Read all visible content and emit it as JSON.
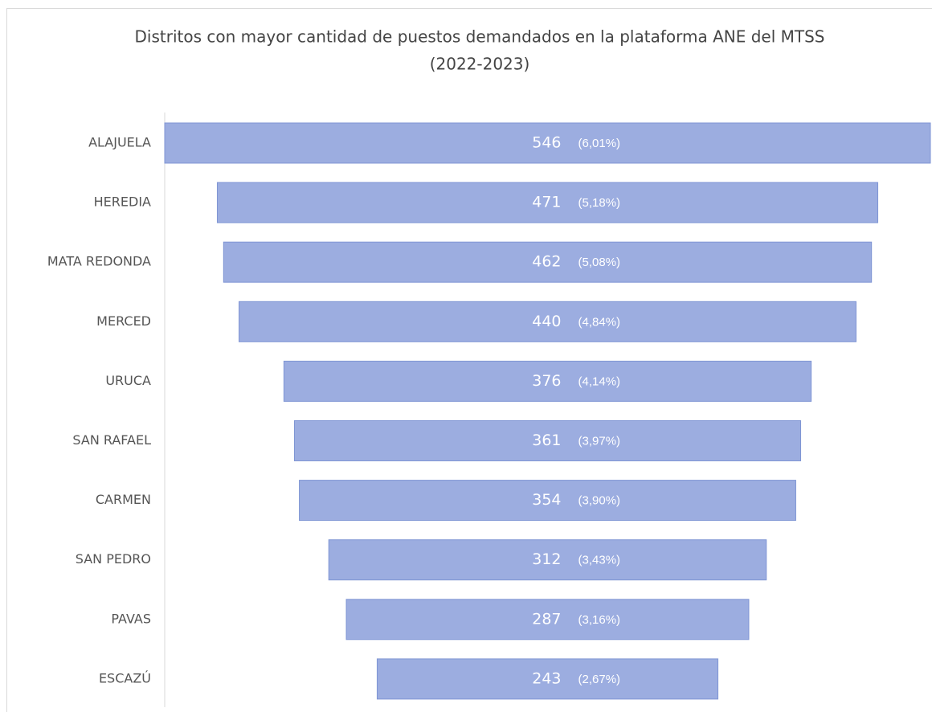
{
  "chart_data": {
    "type": "funnel",
    "title": "Distritos con mayor cantidad de puestos demandados en la plataforma ANE del MTSS",
    "subtitle": "(2022-2023)",
    "categories": [
      "ALAJUELA",
      "HEREDIA",
      "MATA REDONDA",
      "MERCED",
      "URUCA",
      "SAN RAFAEL",
      "CARMEN",
      "SAN PEDRO",
      "PAVAS",
      "ESCAZÚ"
    ],
    "values": [
      546,
      471,
      462,
      440,
      376,
      361,
      354,
      312,
      287,
      243
    ],
    "percent_labels": [
      "(6,01%)",
      "(5,18%)",
      "(5,08%)",
      "(4,84%)",
      "(4,14%)",
      "(3,97%)",
      "(3,90%)",
      "(3,43%)",
      "(3,16%)",
      "(2,67%)"
    ],
    "color": "#9cade0",
    "xlim": [
      0,
      546
    ]
  }
}
